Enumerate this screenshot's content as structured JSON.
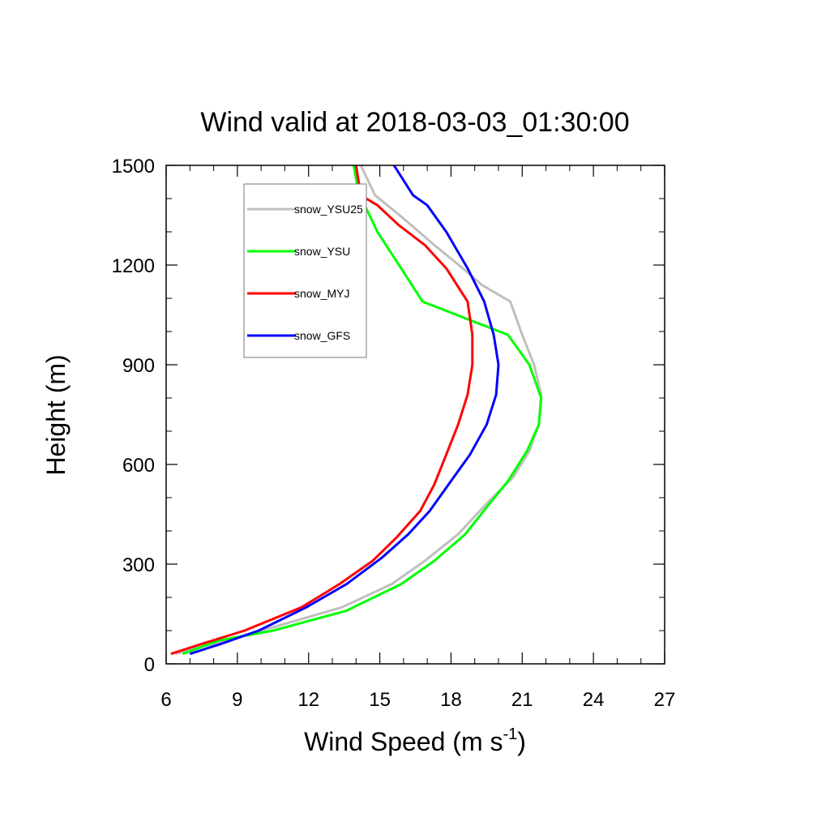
{
  "chart_data": {
    "type": "line",
    "title": "Wind valid at 2018-03-03_01:30:00",
    "xlabel": "Wind Speed (m s",
    "xlabel_superscript": "-1",
    "xlabel_suffix": ")",
    "ylabel": "Height (m)",
    "xlim": [
      6,
      27
    ],
    "ylim": [
      0,
      1500
    ],
    "xticks": [
      6,
      9,
      12,
      15,
      18,
      21,
      24,
      27
    ],
    "yticks": [
      0,
      300,
      600,
      900,
      1200,
      1500
    ],
    "grid": false,
    "legend_position": "top-left",
    "series": [
      {
        "name": "snow_YSU25",
        "color": "#bfbfbf",
        "points": [
          [
            6.4,
            30
          ],
          [
            8.5,
            70
          ],
          [
            10.5,
            110
          ],
          [
            13.4,
            170
          ],
          [
            15.5,
            240
          ],
          [
            16.9,
            310
          ],
          [
            18.3,
            390
          ],
          [
            19.6,
            490
          ],
          [
            20.6,
            560
          ],
          [
            21.3,
            640
          ],
          [
            21.7,
            720
          ],
          [
            21.8,
            810
          ],
          [
            21.5,
            900
          ],
          [
            21.0,
            990
          ],
          [
            20.5,
            1090
          ],
          [
            19.3,
            1140
          ],
          [
            18.5,
            1190
          ],
          [
            17.3,
            1260
          ],
          [
            16.0,
            1340
          ],
          [
            14.8,
            1410
          ],
          [
            14.2,
            1500
          ]
        ]
      },
      {
        "name": "snow_YSU",
        "color": "#00ff00",
        "points": [
          [
            6.7,
            30
          ],
          [
            8.2,
            70
          ],
          [
            10.5,
            100
          ],
          [
            13.6,
            160
          ],
          [
            15.9,
            240
          ],
          [
            17.3,
            310
          ],
          [
            18.6,
            390
          ],
          [
            19.6,
            480
          ],
          [
            20.4,
            550
          ],
          [
            21.2,
            640
          ],
          [
            21.7,
            720
          ],
          [
            21.8,
            800
          ],
          [
            21.3,
            900
          ],
          [
            20.4,
            990
          ],
          [
            16.8,
            1090
          ],
          [
            15.9,
            1190
          ],
          [
            14.9,
            1300
          ],
          [
            14.5,
            1360
          ],
          [
            14.1,
            1420
          ],
          [
            13.9,
            1500
          ]
        ]
      },
      {
        "name": "snow_MYJ",
        "color": "#ff0000",
        "points": [
          [
            6.2,
            30
          ],
          [
            7.5,
            60
          ],
          [
            9.3,
            100
          ],
          [
            11.7,
            170
          ],
          [
            13.3,
            240
          ],
          [
            14.7,
            310
          ],
          [
            15.7,
            380
          ],
          [
            16.7,
            460
          ],
          [
            17.3,
            540
          ],
          [
            17.8,
            630
          ],
          [
            18.3,
            720
          ],
          [
            18.7,
            810
          ],
          [
            18.9,
            900
          ],
          [
            18.9,
            990
          ],
          [
            18.7,
            1090
          ],
          [
            17.8,
            1190
          ],
          [
            16.9,
            1260
          ],
          [
            15.8,
            1320
          ],
          [
            14.9,
            1380
          ],
          [
            14.2,
            1410
          ],
          [
            14.0,
            1500
          ]
        ]
      },
      {
        "name": "snow_GFS",
        "color": "#0000ff",
        "points": [
          [
            7.0,
            30
          ],
          [
            8.3,
            60
          ],
          [
            9.9,
            100
          ],
          [
            11.9,
            170
          ],
          [
            13.6,
            240
          ],
          [
            15.1,
            320
          ],
          [
            16.2,
            390
          ],
          [
            17.1,
            460
          ],
          [
            18.0,
            550
          ],
          [
            18.8,
            630
          ],
          [
            19.5,
            720
          ],
          [
            19.9,
            810
          ],
          [
            20.0,
            900
          ],
          [
            19.8,
            990
          ],
          [
            19.4,
            1090
          ],
          [
            18.7,
            1190
          ],
          [
            17.8,
            1300
          ],
          [
            17.0,
            1380
          ],
          [
            16.4,
            1410
          ],
          [
            15.6,
            1500
          ]
        ]
      }
    ]
  }
}
